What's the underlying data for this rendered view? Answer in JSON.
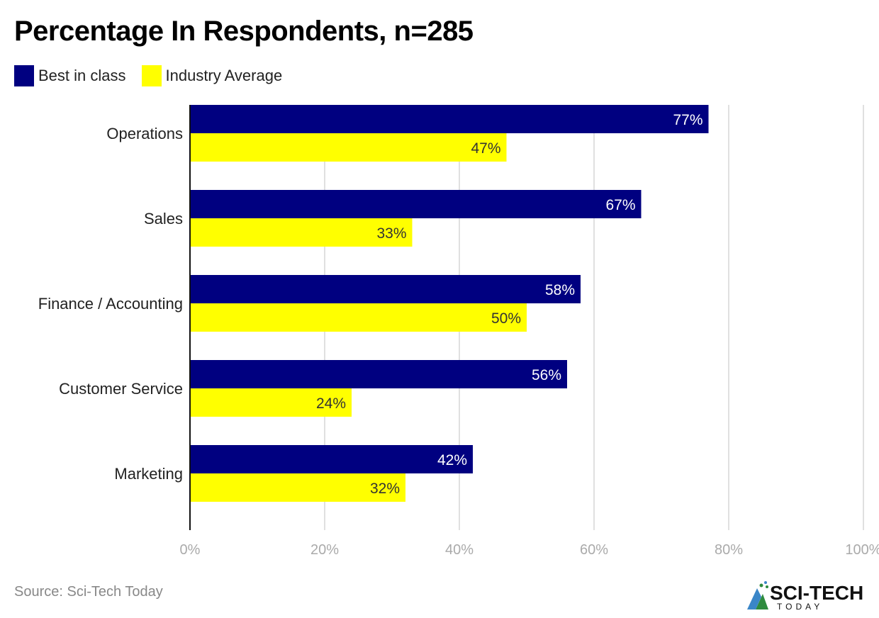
{
  "chart_data": {
    "type": "bar",
    "orientation": "horizontal",
    "title": "Percentage In Respondents, n=285",
    "categories": [
      "Operations",
      "Sales",
      "Finance / Accounting",
      "Customer Service",
      "Marketing"
    ],
    "series": [
      {
        "name": "Best in class",
        "color": "#000080",
        "values": [
          77,
          67,
          58,
          56,
          42
        ],
        "labels": [
          "77%",
          "67%",
          "58%",
          "56%",
          "42%"
        ]
      },
      {
        "name": "Industry Average",
        "color": "#FFFF00",
        "values": [
          47,
          33,
          50,
          24,
          32
        ],
        "labels": [
          "47%",
          "33%",
          "50%",
          "24%",
          "32%"
        ]
      }
    ],
    "xlim": [
      0,
      100
    ],
    "xticks": [
      "0%",
      "20%",
      "40%",
      "60%",
      "80%",
      "100%"
    ],
    "xlabel": "",
    "ylabel": "",
    "grid": true,
    "legend": "top-left"
  },
  "source": "Source: Sci-Tech Today",
  "logo": {
    "main": "SCI-TECH",
    "sub": "TODAY"
  }
}
